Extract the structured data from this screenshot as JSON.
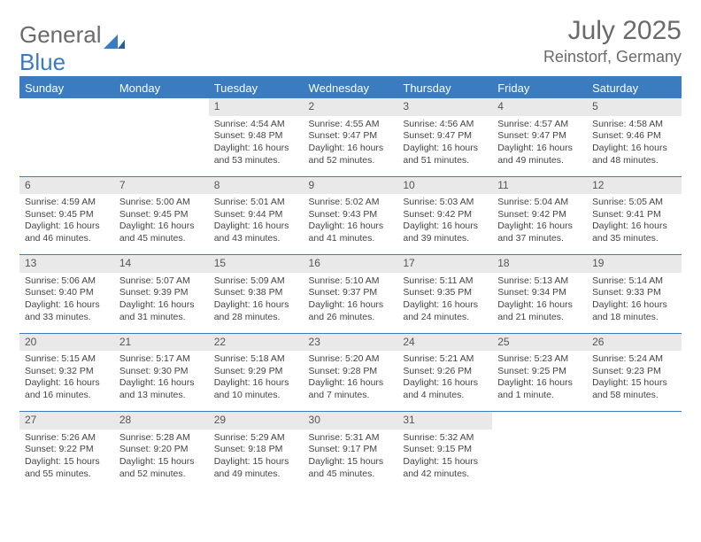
{
  "brand": {
    "text1": "General",
    "text2": "Blue"
  },
  "title": "July 2025",
  "location": "Reinstorf, Germany",
  "colors": {
    "accent": "#3b7bbf",
    "header_text": "#6a6a6a",
    "daynum_bg": "#e9e9e9",
    "body_text": "#444444"
  },
  "weekdays": [
    "Sunday",
    "Monday",
    "Tuesday",
    "Wednesday",
    "Thursday",
    "Friday",
    "Saturday"
  ],
  "weeks": [
    [
      null,
      null,
      {
        "n": "1",
        "sr": "4:54 AM",
        "ss": "9:48 PM",
        "dl": "16 hours and 53 minutes."
      },
      {
        "n": "2",
        "sr": "4:55 AM",
        "ss": "9:47 PM",
        "dl": "16 hours and 52 minutes."
      },
      {
        "n": "3",
        "sr": "4:56 AM",
        "ss": "9:47 PM",
        "dl": "16 hours and 51 minutes."
      },
      {
        "n": "4",
        "sr": "4:57 AM",
        "ss": "9:47 PM",
        "dl": "16 hours and 49 minutes."
      },
      {
        "n": "5",
        "sr": "4:58 AM",
        "ss": "9:46 PM",
        "dl": "16 hours and 48 minutes."
      }
    ],
    [
      {
        "n": "6",
        "sr": "4:59 AM",
        "ss": "9:45 PM",
        "dl": "16 hours and 46 minutes."
      },
      {
        "n": "7",
        "sr": "5:00 AM",
        "ss": "9:45 PM",
        "dl": "16 hours and 45 minutes."
      },
      {
        "n": "8",
        "sr": "5:01 AM",
        "ss": "9:44 PM",
        "dl": "16 hours and 43 minutes."
      },
      {
        "n": "9",
        "sr": "5:02 AM",
        "ss": "9:43 PM",
        "dl": "16 hours and 41 minutes."
      },
      {
        "n": "10",
        "sr": "5:03 AM",
        "ss": "9:42 PM",
        "dl": "16 hours and 39 minutes."
      },
      {
        "n": "11",
        "sr": "5:04 AM",
        "ss": "9:42 PM",
        "dl": "16 hours and 37 minutes."
      },
      {
        "n": "12",
        "sr": "5:05 AM",
        "ss": "9:41 PM",
        "dl": "16 hours and 35 minutes."
      }
    ],
    [
      {
        "n": "13",
        "sr": "5:06 AM",
        "ss": "9:40 PM",
        "dl": "16 hours and 33 minutes."
      },
      {
        "n": "14",
        "sr": "5:07 AM",
        "ss": "9:39 PM",
        "dl": "16 hours and 31 minutes."
      },
      {
        "n": "15",
        "sr": "5:09 AM",
        "ss": "9:38 PM",
        "dl": "16 hours and 28 minutes."
      },
      {
        "n": "16",
        "sr": "5:10 AM",
        "ss": "9:37 PM",
        "dl": "16 hours and 26 minutes."
      },
      {
        "n": "17",
        "sr": "5:11 AM",
        "ss": "9:35 PM",
        "dl": "16 hours and 24 minutes."
      },
      {
        "n": "18",
        "sr": "5:13 AM",
        "ss": "9:34 PM",
        "dl": "16 hours and 21 minutes."
      },
      {
        "n": "19",
        "sr": "5:14 AM",
        "ss": "9:33 PM",
        "dl": "16 hours and 18 minutes."
      }
    ],
    [
      {
        "n": "20",
        "sr": "5:15 AM",
        "ss": "9:32 PM",
        "dl": "16 hours and 16 minutes."
      },
      {
        "n": "21",
        "sr": "5:17 AM",
        "ss": "9:30 PM",
        "dl": "16 hours and 13 minutes."
      },
      {
        "n": "22",
        "sr": "5:18 AM",
        "ss": "9:29 PM",
        "dl": "16 hours and 10 minutes."
      },
      {
        "n": "23",
        "sr": "5:20 AM",
        "ss": "9:28 PM",
        "dl": "16 hours and 7 minutes."
      },
      {
        "n": "24",
        "sr": "5:21 AM",
        "ss": "9:26 PM",
        "dl": "16 hours and 4 minutes."
      },
      {
        "n": "25",
        "sr": "5:23 AM",
        "ss": "9:25 PM",
        "dl": "16 hours and 1 minute."
      },
      {
        "n": "26",
        "sr": "5:24 AM",
        "ss": "9:23 PM",
        "dl": "15 hours and 58 minutes."
      }
    ],
    [
      {
        "n": "27",
        "sr": "5:26 AM",
        "ss": "9:22 PM",
        "dl": "15 hours and 55 minutes."
      },
      {
        "n": "28",
        "sr": "5:28 AM",
        "ss": "9:20 PM",
        "dl": "15 hours and 52 minutes."
      },
      {
        "n": "29",
        "sr": "5:29 AM",
        "ss": "9:18 PM",
        "dl": "15 hours and 49 minutes."
      },
      {
        "n": "30",
        "sr": "5:31 AM",
        "ss": "9:17 PM",
        "dl": "15 hours and 45 minutes."
      },
      {
        "n": "31",
        "sr": "5:32 AM",
        "ss": "9:15 PM",
        "dl": "15 hours and 42 minutes."
      },
      null,
      null
    ]
  ],
  "labels": {
    "sunrise": "Sunrise: ",
    "sunset": "Sunset: ",
    "daylight": "Daylight: "
  }
}
